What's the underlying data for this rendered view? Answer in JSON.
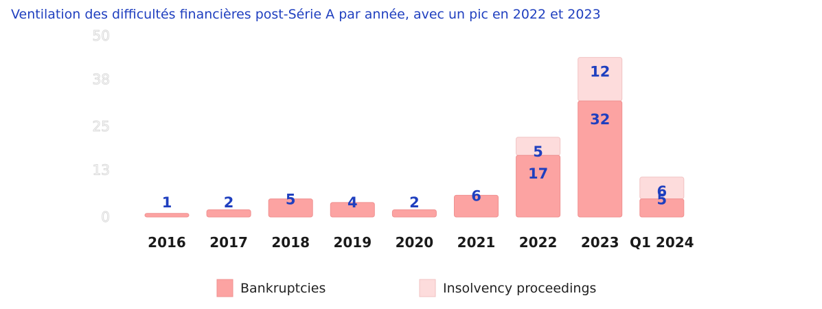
{
  "chart_data": {
    "type": "bar",
    "stacked": true,
    "title": "Ventilation des difficultés financières post-Série A par année, avec un pic en 2022 et 2023",
    "categories": [
      "2016",
      "2017",
      "2018",
      "2019",
      "2020",
      "2021",
      "2022",
      "2023",
      "Q1 2024"
    ],
    "series": [
      {
        "name": "Bankruptcies",
        "color": "#fca3a2",
        "values": [
          1,
          2,
          5,
          4,
          2,
          6,
          17,
          32,
          5
        ]
      },
      {
        "name": "Insolvency proceedings",
        "color": "#fddcdc",
        "values": [
          0,
          0,
          0,
          0,
          0,
          0,
          5,
          12,
          6
        ]
      }
    ],
    "y_ticks": [
      "0",
      "13",
      "25",
      "38",
      "50"
    ],
    "ylim": [
      0,
      50
    ],
    "legend_position": "bottom",
    "grid": false
  }
}
